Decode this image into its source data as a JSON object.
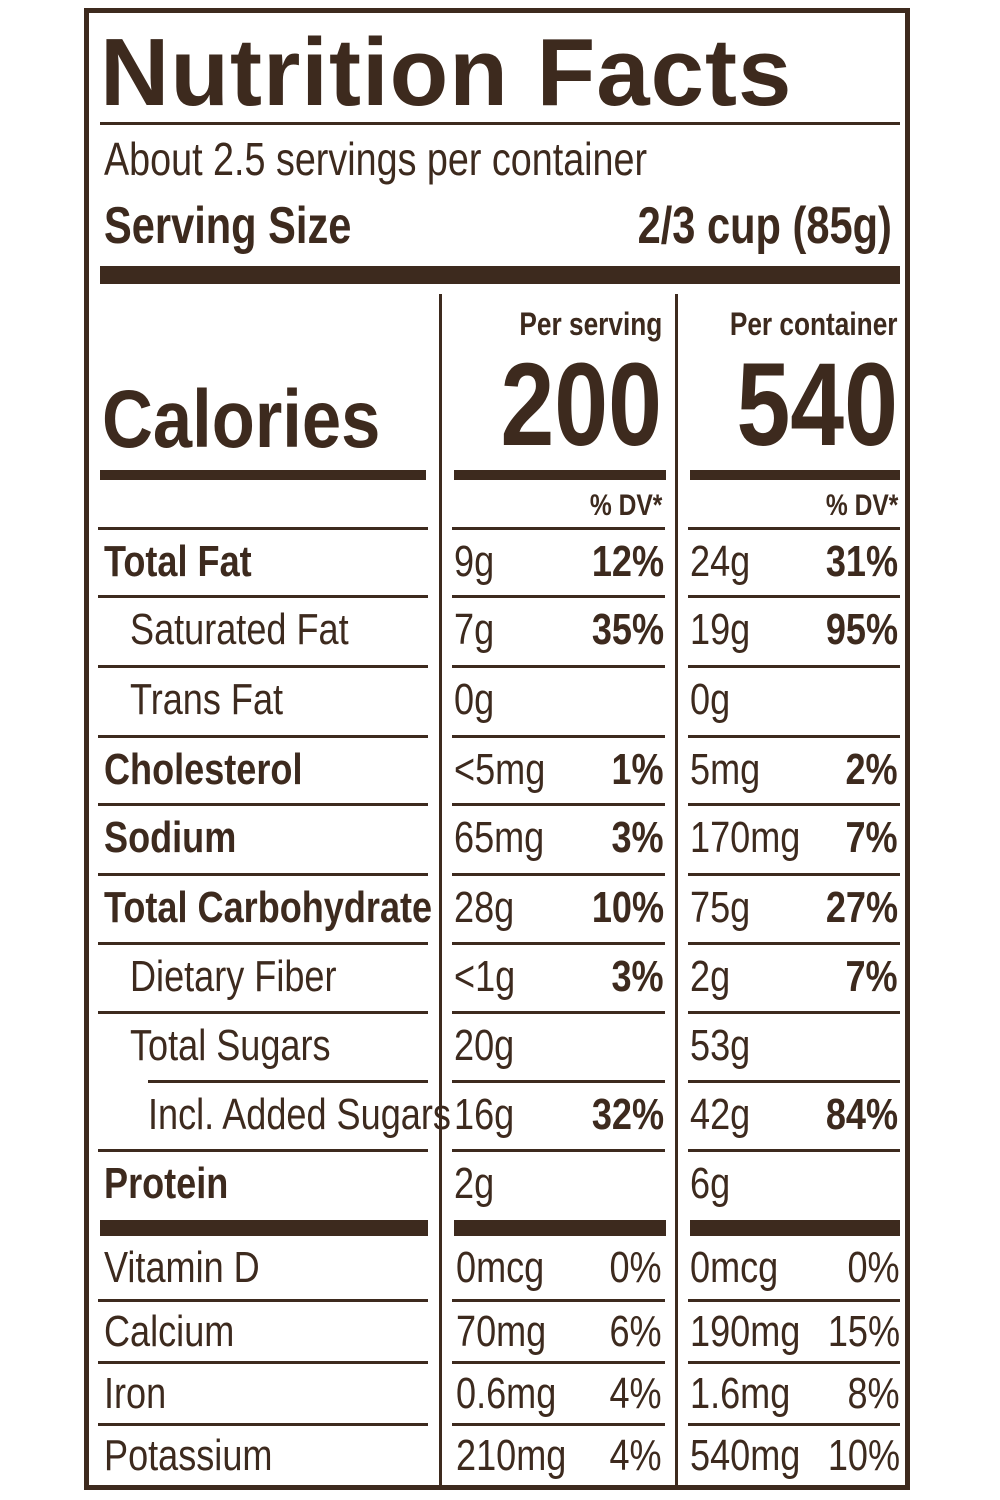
{
  "title": "Nutrition Facts",
  "servings_per_container": "About 2.5 servings per container",
  "serving_size_label": "Serving Size",
  "serving_size_value": "2/3 cup (85g)",
  "calories_label": "Calories",
  "per_serving_label": "Per serving",
  "per_container_label": "Per container",
  "calories_per_serving": "200",
  "calories_per_container": "540",
  "dv_label": "% DV*",
  "nutrients": [
    {
      "name": "Total Fat",
      "bold": true,
      "indent": 0,
      "serving_amount": "9g",
      "serving_dv": "12%",
      "container_amount": "24g",
      "container_dv": "31%"
    },
    {
      "name": "Saturated Fat",
      "bold": false,
      "indent": 1,
      "serving_amount": "7g",
      "serving_dv": "35%",
      "container_amount": "19g",
      "container_dv": "95%"
    },
    {
      "name": "Trans Fat",
      "bold": false,
      "indent": 1,
      "serving_amount": "0g",
      "serving_dv": "",
      "container_amount": "0g",
      "container_dv": ""
    },
    {
      "name": "Cholesterol",
      "bold": true,
      "indent": 0,
      "serving_amount": "<5mg",
      "serving_dv": "1%",
      "container_amount": "5mg",
      "container_dv": "2%"
    },
    {
      "name": "Sodium",
      "bold": true,
      "indent": 0,
      "serving_amount": "65mg",
      "serving_dv": "3%",
      "container_amount": "170mg",
      "container_dv": "7%"
    },
    {
      "name": "Total Carbohydrate",
      "bold": true,
      "indent": 0,
      "serving_amount": "28g",
      "serving_dv": "10%",
      "container_amount": "75g",
      "container_dv": "27%"
    },
    {
      "name": "Dietary Fiber",
      "bold": false,
      "indent": 1,
      "serving_amount": "<1g",
      "serving_dv": "3%",
      "container_amount": "2g",
      "container_dv": "7%"
    },
    {
      "name": "Total Sugars",
      "bold": false,
      "indent": 1,
      "serving_amount": "20g",
      "serving_dv": "",
      "container_amount": "53g",
      "container_dv": ""
    },
    {
      "name": "Incl. Added Sugars",
      "bold": false,
      "indent": 2,
      "serving_amount": "16g",
      "serving_dv": "32%",
      "container_amount": "42g",
      "container_dv": "84%"
    },
    {
      "name": "Protein",
      "bold": true,
      "indent": 0,
      "serving_amount": "2g",
      "serving_dv": "",
      "container_amount": "6g",
      "container_dv": ""
    }
  ],
  "vitamins": [
    {
      "name": "Vitamin D",
      "serving_amount": "0mcg",
      "serving_dv": "0%",
      "container_amount": "0mcg",
      "container_dv": "0%"
    },
    {
      "name": "Calcium",
      "serving_amount": "70mg",
      "serving_dv": "6%",
      "container_amount": "190mg",
      "container_dv": "15%"
    },
    {
      "name": "Iron",
      "serving_amount": "0.6mg",
      "serving_dv": "4%",
      "container_amount": "1.6mg",
      "container_dv": "8%"
    },
    {
      "name": "Potassium",
      "serving_amount": "210mg",
      "serving_dv": "4%",
      "container_amount": "540mg",
      "container_dv": "10%"
    }
  ]
}
